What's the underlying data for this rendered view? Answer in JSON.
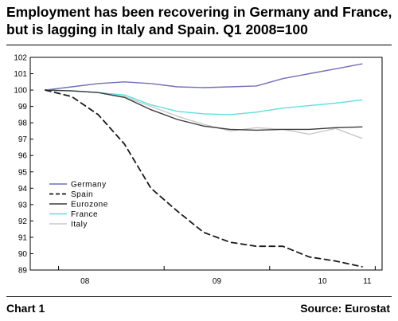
{
  "header": {
    "title_line1": "Employment has been recovering in Germany and France,",
    "title_line2": "but is lagging in Italy and Spain. Q1 2008=100"
  },
  "footer": {
    "chart_label": "Chart 1",
    "source": "Source: Eurostat"
  },
  "chart_data": {
    "type": "line",
    "title": "Employment has been recovering in Germany and France, but is lagging in Italy and Spain. Q1 2008=100",
    "xlabel": "",
    "ylabel": "",
    "ylim": [
      89,
      102
    ],
    "yticks": [
      89,
      90,
      91,
      92,
      93,
      94,
      95,
      96,
      97,
      98,
      99,
      100,
      101,
      102
    ],
    "x_tick_labels": [
      "08",
      "09",
      "10",
      "11"
    ],
    "x": [
      "Q1 2008",
      "Q2 2008",
      "Q3 2008",
      "Q4 2008",
      "Q1 2009",
      "Q2 2009",
      "Q3 2009",
      "Q4 2009",
      "Q1 2010",
      "Q2 2010",
      "Q3 2010",
      "Q4 2010",
      "Q1 2011"
    ],
    "legend_position": "lower-left",
    "grid": false,
    "series": [
      {
        "name": "Germany",
        "color": "#6f6fb8",
        "dash": "solid",
        "values": [
          100.0,
          100.2,
          100.4,
          100.5,
          100.4,
          100.2,
          100.15,
          100.2,
          100.25,
          100.7,
          101.0,
          101.3,
          101.6
        ]
      },
      {
        "name": "Spain",
        "color": "#1a1a1a",
        "dash": "dashed",
        "values": [
          100.0,
          99.6,
          98.5,
          96.7,
          94.0,
          92.6,
          91.3,
          90.7,
          90.45,
          90.45,
          89.8,
          89.55,
          89.2
        ]
      },
      {
        "name": "Eurozone",
        "color": "#3a3a3a",
        "dash": "solid",
        "values": [
          100.0,
          99.95,
          99.85,
          99.55,
          98.8,
          98.2,
          97.8,
          97.6,
          97.55,
          97.6,
          97.6,
          97.7,
          97.75
        ]
      },
      {
        "name": "France",
        "color": "#5fe0e0",
        "dash": "solid",
        "values": [
          100.0,
          99.95,
          99.85,
          99.7,
          99.1,
          98.7,
          98.55,
          98.5,
          98.65,
          98.9,
          99.05,
          99.2,
          99.4
        ]
      },
      {
        "name": "Italy",
        "color": "#c8c8c8",
        "dash": "solid",
        "values": [
          100.0,
          99.95,
          99.85,
          99.6,
          99.0,
          98.4,
          97.9,
          97.5,
          97.7,
          97.6,
          97.3,
          97.65,
          97.05
        ]
      }
    ]
  }
}
